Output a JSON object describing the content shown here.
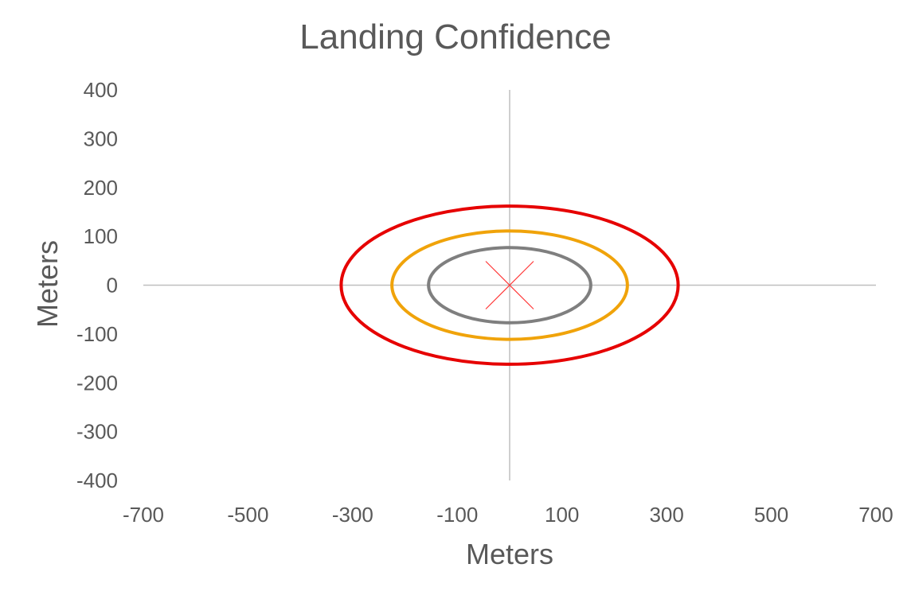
{
  "chart_data": {
    "type": "scatter",
    "title": "Landing Confidence",
    "xlabel": "Meters",
    "ylabel": "Meters",
    "xlim": [
      -700,
      700
    ],
    "ylim": [
      -400,
      400
    ],
    "xticks": [
      -700,
      -500,
      -300,
      -100,
      100,
      300,
      500,
      700
    ],
    "yticks": [
      400,
      300,
      200,
      100,
      0,
      -100,
      -200,
      -300,
      -400
    ],
    "grid": false,
    "legend": "none",
    "series": [
      {
        "kind": "ellipse",
        "center": [
          0,
          0
        ],
        "semi_axis_x": 155,
        "semi_axis_y": 77,
        "color": "#7f7f7f"
      },
      {
        "kind": "ellipse",
        "center": [
          0,
          0
        ],
        "semi_axis_x": 225,
        "semi_axis_y": 111,
        "color": "#f0a30a"
      },
      {
        "kind": "ellipse",
        "center": [
          0,
          0
        ],
        "semi_axis_x": 322,
        "semi_axis_y": 162,
        "color": "#e60000"
      },
      {
        "kind": "marker",
        "marker": "x",
        "points": [
          [
            0,
            0
          ]
        ],
        "color": "#ff3b3b"
      }
    ]
  }
}
